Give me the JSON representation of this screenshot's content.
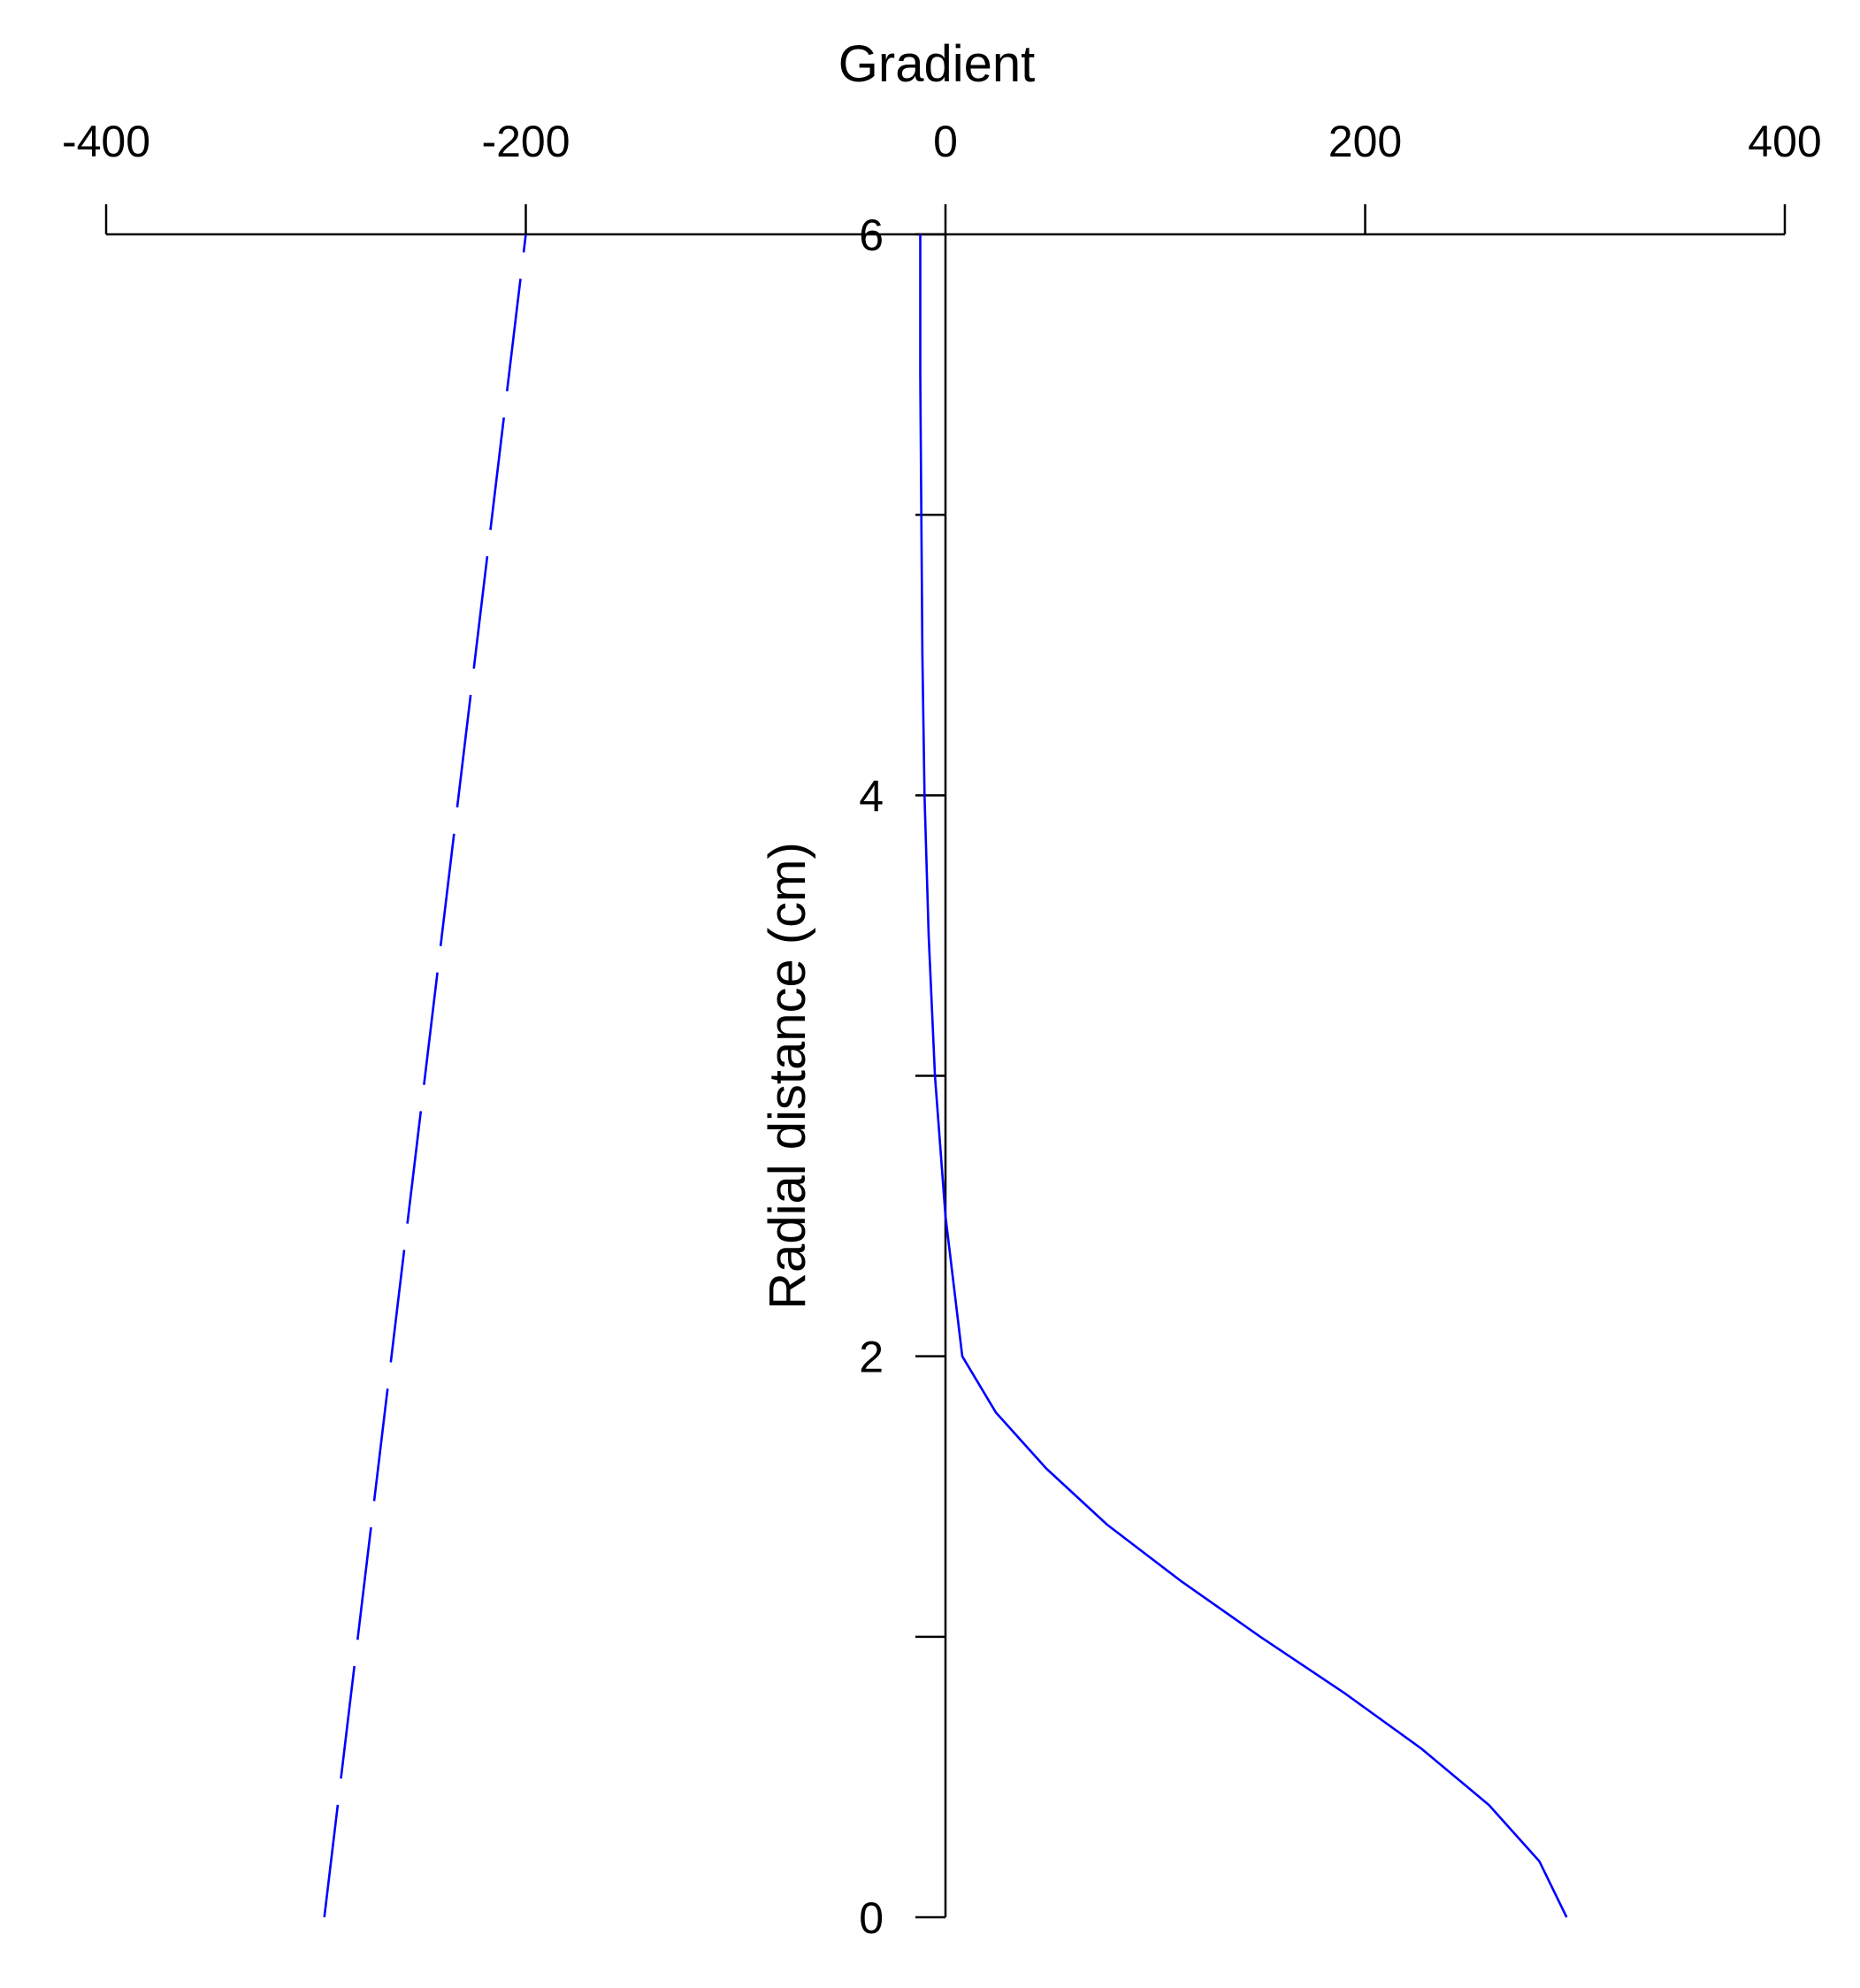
{
  "chart_data": {
    "type": "line",
    "xlabel": "Gradient",
    "ylabel": "Radial distance (cm)",
    "xlim": [
      -400,
      400
    ],
    "ylim": [
      0,
      6
    ],
    "x_ticks": [
      -400,
      -200,
      0,
      200,
      400
    ],
    "x_tick_labels": [
      "-400",
      "-200",
      "0",
      "200",
      "400"
    ],
    "y_ticks": [
      0,
      1,
      2,
      3,
      4,
      5,
      6
    ],
    "y_tick_labels": [
      "0",
      "",
      "2",
      "",
      "4",
      "",
      "6"
    ],
    "x_axis_position": "top",
    "y_axis_at_x": 0,
    "grid": false,
    "legend": "none",
    "series": [
      {
        "style": "dashed",
        "color": "#0000ff",
        "x": [
          -296,
          -200
        ],
        "y": [
          0,
          6
        ]
      },
      {
        "style": "solid",
        "color": "#0000ff",
        "x": [
          296,
          283,
          259,
          227,
          190,
          150,
          112,
          77,
          48,
          24,
          8,
          0,
          -5,
          -8,
          -10,
          -11,
          -11.5,
          -12,
          -12,
          -12
        ],
        "y": [
          0,
          0.2,
          0.4,
          0.6,
          0.8,
          1.0,
          1.2,
          1.4,
          1.6,
          1.8,
          2.0,
          2.5,
          3.0,
          3.5,
          4.0,
          4.5,
          5.0,
          5.5,
          5.8,
          6.0
        ]
      }
    ]
  }
}
